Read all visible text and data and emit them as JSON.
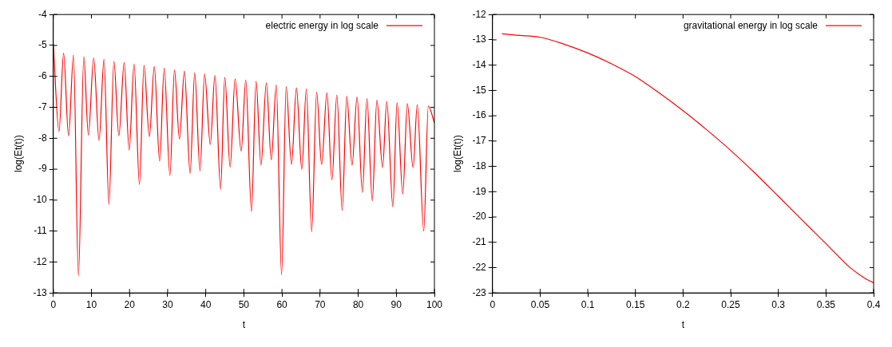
{
  "chart_data": [
    {
      "type": "line",
      "xlabel": "t",
      "ylabel": "log(Et(t))",
      "xlim": [
        0,
        100
      ],
      "ylim": [
        -13,
        -4
      ],
      "xticks": [
        0,
        10,
        20,
        30,
        40,
        50,
        60,
        70,
        80,
        90,
        100
      ],
      "yticks": [
        -13,
        -12,
        -11,
        -10,
        -9,
        -8,
        -7,
        -6,
        -5,
        -4
      ],
      "grid": false,
      "legend": "top right",
      "marker": "none",
      "line_style": "solid",
      "x": [
        0,
        1.5,
        2.7,
        4.0,
        5.3,
        6.6,
        8.0,
        9.2,
        10.6,
        12.0,
        13.3,
        14.6,
        15.9,
        17.2,
        18.6,
        19.9,
        21.2,
        22.6,
        23.8,
        25.2,
        26.5,
        27.9,
        29.1,
        30.6,
        31.8,
        33.1,
        34.4,
        35.9,
        37.1,
        38.5,
        39.7,
        41.2,
        42.4,
        43.9,
        45.0,
        46.4,
        47.7,
        49.3,
        50.5,
        52.0,
        53.2,
        54.5,
        55.9,
        57.2,
        58.5,
        59.9,
        61.1,
        62.5,
        63.8,
        65.2,
        66.4,
        67.8,
        69.1,
        70.4,
        71.8,
        73.1,
        74.4,
        75.8,
        77.0,
        78.4,
        79.7,
        81.1,
        82.3,
        83.7,
        84.9,
        86.4,
        87.5,
        89.1,
        90.2,
        91.7,
        92.9,
        94.4,
        95.5,
        97.2,
        98.4,
        100
      ],
      "series": [
        {
          "name": "electric energy in log scale",
          "color": "#ff0000",
          "values": [
            -4.95,
            -7.78,
            -5.25,
            -7.92,
            -5.31,
            -12.45,
            -5.36,
            -7.9,
            -5.4,
            -8.07,
            -5.45,
            -10.14,
            -5.51,
            -7.92,
            -5.55,
            -8.38,
            -5.6,
            -9.49,
            -5.64,
            -7.95,
            -5.68,
            -8.74,
            -5.73,
            -9.2,
            -5.79,
            -8.03,
            -5.83,
            -9.13,
            -5.88,
            -9.05,
            -5.92,
            -8.2,
            -5.97,
            -9.65,
            -6.03,
            -8.94,
            -6.08,
            -8.42,
            -6.12,
            -10.37,
            -6.16,
            -8.87,
            -6.21,
            -8.7,
            -6.27,
            -12.41,
            -6.33,
            -8.85,
            -6.37,
            -9.01,
            -6.4,
            -11.02,
            -6.51,
            -8.85,
            -6.53,
            -9.35,
            -6.6,
            -10.33,
            -6.64,
            -8.87,
            -6.66,
            -9.75,
            -6.72,
            -10.02,
            -6.77,
            -8.94,
            -6.81,
            -10.22,
            -6.85,
            -9.8,
            -6.88,
            -8.95,
            -6.92,
            -11.0,
            -6.96,
            -7.5
          ]
        }
      ]
    },
    {
      "type": "line",
      "xlabel": "t",
      "ylabel": "log(Et(t))",
      "xlim": [
        0,
        0.4
      ],
      "ylim": [
        -23,
        -12
      ],
      "xticks": [
        0,
        0.05,
        0.1,
        0.15,
        0.2,
        0.25,
        0.3,
        0.35,
        0.4
      ],
      "yticks": [
        -23,
        -22,
        -21,
        -20,
        -19,
        -18,
        -17,
        -16,
        -15,
        -14,
        -13,
        -12
      ],
      "grid": false,
      "legend": "top right",
      "marker": "none",
      "line_style": "solid",
      "x": [
        0.01,
        0.025,
        0.05,
        0.075,
        0.1,
        0.125,
        0.15,
        0.175,
        0.2,
        0.225,
        0.25,
        0.275,
        0.3,
        0.325,
        0.35,
        0.375,
        0.39,
        0.4
      ],
      "series": [
        {
          "name": "gravitational energy in log scale",
          "color": "#ff0000",
          "values": [
            -12.76,
            -12.82,
            -12.9,
            -13.17,
            -13.52,
            -13.95,
            -14.45,
            -15.1,
            -15.8,
            -16.56,
            -17.37,
            -18.25,
            -19.18,
            -20.12,
            -21.05,
            -21.99,
            -22.4,
            -22.6
          ]
        }
      ]
    }
  ]
}
